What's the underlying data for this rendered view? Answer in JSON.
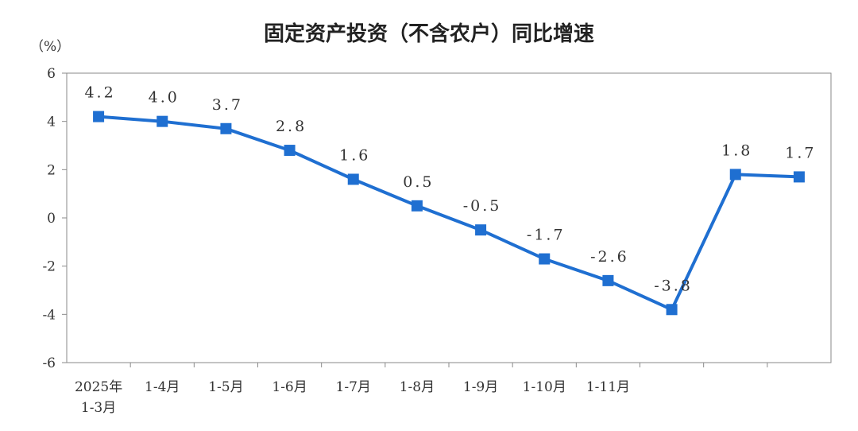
{
  "chart_data": {
    "type": "line",
    "title": "固定资产投资（不含农户）同比增速",
    "y_unit": "（%）",
    "ylim": [
      -6,
      6
    ],
    "y_ticks": [
      "6",
      "4",
      "2",
      "0",
      "-2",
      "-4",
      "-6"
    ],
    "x_ticks": [
      [
        "2025年",
        "1-3月"
      ],
      [
        "1-4月"
      ],
      [
        "1-5月"
      ],
      [
        "1-6月"
      ],
      [
        "1-7月"
      ],
      [
        "1-8月"
      ],
      [
        "1-9月"
      ],
      [
        "1-10月"
      ],
      [
        "1-11月"
      ],
      [],
      [],
      []
    ],
    "values": [
      4.2,
      4.0,
      3.7,
      2.8,
      1.6,
      0.5,
      -0.5,
      -1.7,
      -2.6,
      -3.8,
      1.8,
      1.7
    ],
    "data_labels": [
      "4.2",
      "4.0",
      "3.7",
      "2.8",
      "1.6",
      "0.5",
      "-0.5",
      "-1.7",
      "-2.6",
      "-3.8",
      "1.8",
      "1.7"
    ],
    "line_color": "#1f6fd1",
    "grid": false
  }
}
